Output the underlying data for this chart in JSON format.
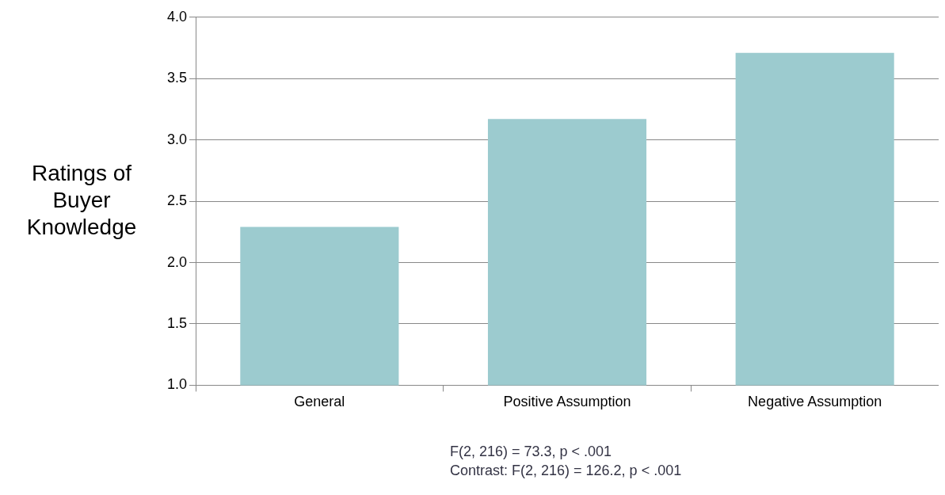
{
  "chart_data": {
    "type": "bar",
    "ylabel": "Ratings of\nBuyer\nKnowledge",
    "categories": [
      "General",
      "Positive Assumption",
      "Negative Assumption"
    ],
    "values": [
      2.29,
      3.17,
      3.71
    ],
    "color": "#9ccbcf",
    "ylim": [
      1,
      4
    ],
    "yticks": [
      {
        "value": 1,
        "label": "1.0"
      },
      {
        "value": 1.5,
        "label": "1.5"
      },
      {
        "value": 2,
        "label": "2.0"
      },
      {
        "value": 2.5,
        "label": "2.5"
      },
      {
        "value": 3,
        "label": "3.0"
      },
      {
        "value": 3.5,
        "label": "3.5"
      },
      {
        "value": 4,
        "label": "4.0"
      }
    ],
    "grid": "y",
    "legend": false,
    "annotations": [
      "F(2, 216) = 73.3, p < .001",
      "Contrast: F(2, 216) = 126.2, p < .001"
    ]
  }
}
